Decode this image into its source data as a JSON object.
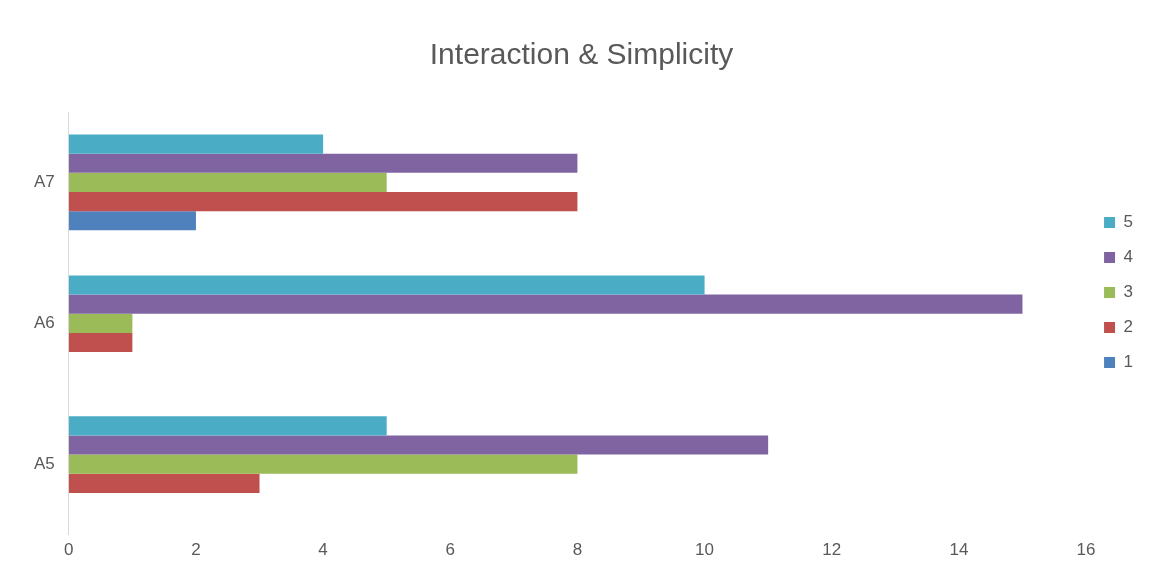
{
  "chart_data": {
    "type": "bar",
    "orientation": "horizontal",
    "title": "Interaction & Simplicity",
    "categories": [
      "A7",
      "A6",
      "A5"
    ],
    "series": [
      {
        "name": "1",
        "color": "#4f81bd",
        "values": [
          2,
          null,
          null
        ]
      },
      {
        "name": "2",
        "color": "#c0504d",
        "values": [
          8,
          1,
          3
        ]
      },
      {
        "name": "3",
        "color": "#9bbb59",
        "values": [
          5,
          1,
          8
        ]
      },
      {
        "name": "4",
        "color": "#8064a2",
        "values": [
          8,
          15,
          11
        ]
      },
      {
        "name": "5",
        "color": "#4bacc6",
        "values": [
          4,
          10,
          5
        ]
      }
    ],
    "xlim": [
      0,
      16
    ],
    "xticks": [
      0,
      2,
      4,
      6,
      8,
      10,
      12,
      14,
      16
    ],
    "grid": false,
    "legend": "right"
  }
}
